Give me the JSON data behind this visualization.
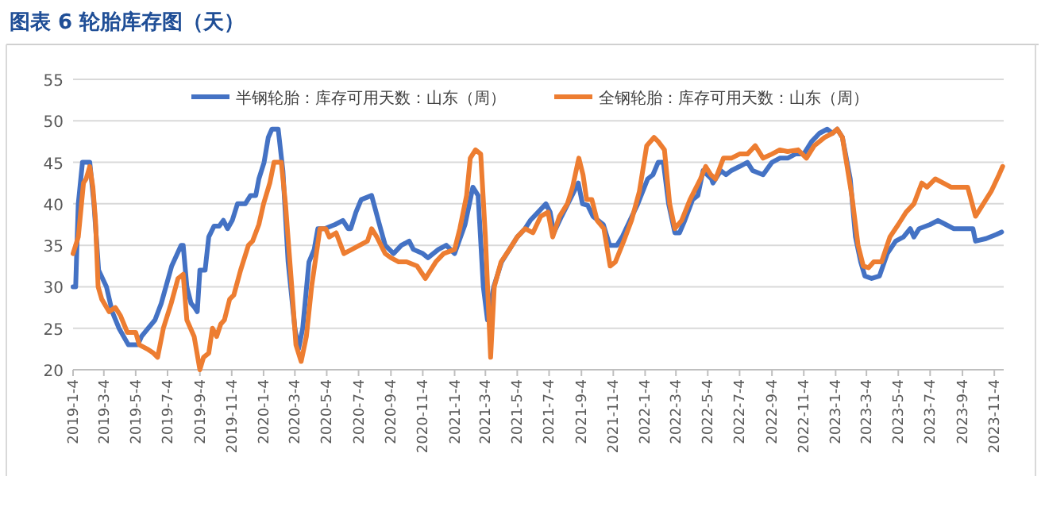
{
  "chart_data": {
    "type": "line",
    "title": "图表 6 轮胎库存图（天）",
    "xlim": [
      "2019-01-04",
      "2023-11-22"
    ],
    "xticks": [
      {
        "value": "2019-01-04",
        "label": "2019-1-4"
      },
      {
        "value": "2019-03-04",
        "label": "2019-3-4"
      },
      {
        "value": "2019-05-04",
        "label": "2019-5-4"
      },
      {
        "value": "2019-07-04",
        "label": "2019-7-4"
      },
      {
        "value": "2019-09-04",
        "label": "2019-9-4"
      },
      {
        "value": "2019-11-04",
        "label": "2019-11-4"
      },
      {
        "value": "2020-01-04",
        "label": "2020-1-4"
      },
      {
        "value": "2020-03-04",
        "label": "2020-3-4"
      },
      {
        "value": "2020-05-04",
        "label": "2020-5-4"
      },
      {
        "value": "2020-07-04",
        "label": "2020-7-4"
      },
      {
        "value": "2020-09-04",
        "label": "2020-9-4"
      },
      {
        "value": "2020-11-04",
        "label": "2020-11-4"
      },
      {
        "value": "2021-01-04",
        "label": "2021-1-4"
      },
      {
        "value": "2021-03-04",
        "label": "2021-3-4"
      },
      {
        "value": "2021-05-04",
        "label": "2021-5-4"
      },
      {
        "value": "2021-07-04",
        "label": "2021-7-4"
      },
      {
        "value": "2021-09-04",
        "label": "2021-9-4"
      },
      {
        "value": "2021-11-04",
        "label": "2021-11-4"
      },
      {
        "value": "2022-01-04",
        "label": "2022-1-4"
      },
      {
        "value": "2022-03-04",
        "label": "2022-3-4"
      },
      {
        "value": "2022-05-04",
        "label": "2022-5-4"
      },
      {
        "value": "2022-07-04",
        "label": "2022-7-4"
      },
      {
        "value": "2022-09-04",
        "label": "2022-9-4"
      },
      {
        "value": "2022-11-04",
        "label": "2022-11-4"
      },
      {
        "value": "2023-01-04",
        "label": "2023-1-4"
      },
      {
        "value": "2023-03-04",
        "label": "2023-3-4"
      },
      {
        "value": "2023-05-04",
        "label": "2023-5-4"
      },
      {
        "value": "2023-07-04",
        "label": "2023-7-4"
      },
      {
        "value": "2023-09-04",
        "label": "2023-9-4"
      },
      {
        "value": "2023-11-04",
        "label": "2023-11-4"
      }
    ],
    "ylim": [
      20,
      55
    ],
    "yticks": [
      20,
      25,
      30,
      35,
      40,
      45,
      50,
      55
    ],
    "grid": "y",
    "legend": "top",
    "series": [
      {
        "name": "半钢轮胎：库存可用天数：山东（周）",
        "color": "#4472c4",
        "x": [
          "2019-01-04",
          "2019-01-09",
          "2019-01-14",
          "2019-01-22",
          "2019-02-05",
          "2019-02-13",
          "2019-02-22",
          "2019-03-09",
          "2019-03-20",
          "2019-04-02",
          "2019-04-20",
          "2019-05-08",
          "2019-05-15",
          "2019-05-28",
          "2019-06-10",
          "2019-06-22",
          "2019-07-12",
          "2019-07-30",
          "2019-08-03",
          "2019-08-10",
          "2019-08-18",
          "2019-08-25",
          "2019-08-30",
          "2019-09-04",
          "2019-09-14",
          "2019-09-21",
          "2019-10-01",
          "2019-10-11",
          "2019-10-19",
          "2019-10-27",
          "2019-11-05",
          "2019-11-15",
          "2019-11-30",
          "2019-12-10",
          "2019-12-20",
          "2019-12-26",
          "2020-01-05",
          "2020-01-13",
          "2020-01-20",
          "2020-02-01",
          "2020-02-10",
          "2020-02-20",
          "2020-03-04",
          "2020-03-11",
          "2020-03-19",
          "2020-03-31",
          "2020-04-10",
          "2020-04-17",
          "2020-04-30",
          "2020-05-20",
          "2020-06-04",
          "2020-06-14",
          "2020-06-19",
          "2020-06-29",
          "2020-07-09",
          "2020-07-29",
          "2020-08-13",
          "2020-08-24",
          "2020-09-09",
          "2020-09-24",
          "2020-10-09",
          "2020-10-17",
          "2020-11-04",
          "2020-11-14",
          "2020-12-04",
          "2020-12-19",
          "2021-01-04",
          "2021-01-24",
          "2021-02-08",
          "2021-02-18",
          "2021-02-28",
          "2021-03-08",
          "2021-03-20",
          "2021-04-04",
          "2021-04-19",
          "2021-05-04",
          "2021-05-19",
          "2021-05-29",
          "2021-06-13",
          "2021-06-28",
          "2021-07-06",
          "2021-07-13",
          "2021-07-28",
          "2021-08-17",
          "2021-08-29",
          "2021-09-06",
          "2021-09-16",
          "2021-09-26",
          "2021-10-06",
          "2021-10-16",
          "2021-10-28",
          "2021-11-11",
          "2021-11-21",
          "2021-12-06",
          "2021-12-21",
          "2022-01-09",
          "2022-01-19",
          "2022-01-29",
          "2022-02-08",
          "2022-02-18",
          "2022-03-02",
          "2022-03-11",
          "2022-03-21",
          "2022-04-05",
          "2022-04-15",
          "2022-04-25",
          "2022-05-11",
          "2022-05-14",
          "2022-05-29",
          "2022-06-08",
          "2022-06-18",
          "2022-07-04",
          "2022-07-19",
          "2022-07-29",
          "2022-08-18",
          "2022-09-04",
          "2022-09-19",
          "2022-10-04",
          "2022-10-19",
          "2022-11-04",
          "2022-11-19",
          "2022-12-04",
          "2022-12-19",
          "2022-12-29",
          "2023-01-07",
          "2023-01-17",
          "2023-02-01",
          "2023-02-11",
          "2023-02-21",
          "2023-03-01",
          "2023-03-14",
          "2023-03-29",
          "2023-04-13",
          "2023-04-29",
          "2023-05-14",
          "2023-05-27",
          "2023-06-03",
          "2023-06-13",
          "2023-07-04",
          "2023-07-19",
          "2023-08-03",
          "2023-08-18",
          "2023-09-04",
          "2023-09-24",
          "2023-09-29",
          "2023-10-19",
          "2023-11-08",
          "2023-11-18"
        ],
        "values": [
          30,
          30,
          40,
          45,
          45,
          40,
          32,
          30,
          27,
          25,
          23,
          23,
          24,
          25,
          26,
          28,
          32.5,
          35,
          35,
          30,
          28,
          27.5,
          27,
          32,
          32,
          36,
          37.3,
          37.3,
          38,
          37,
          38,
          40,
          40,
          41,
          41,
          43,
          45,
          48,
          49,
          49,
          44,
          33,
          25,
          22.5,
          25,
          33,
          34.5,
          37,
          37,
          37.5,
          38,
          37,
          37,
          39,
          40.5,
          41,
          37.5,
          35,
          34,
          35,
          35.5,
          34.5,
          34,
          33.5,
          34.5,
          35,
          34,
          37.5,
          42,
          41,
          30,
          26,
          30,
          33,
          34.5,
          36,
          37,
          38,
          39,
          40,
          39,
          36.5,
          38.5,
          41,
          42.5,
          40,
          39.8,
          38.5,
          38,
          37.5,
          35,
          35,
          36,
          38,
          40,
          43,
          43.5,
          45,
          45,
          40,
          36.5,
          36.5,
          38,
          40.5,
          41,
          44,
          43,
          42.5,
          44,
          43.5,
          44,
          44.5,
          45,
          44,
          43.5,
          45,
          45.5,
          45.5,
          46,
          46,
          47.5,
          48.5,
          49,
          48.5,
          49,
          48,
          43,
          36,
          33,
          31.3,
          31,
          31.3,
          34,
          35.5,
          36,
          37,
          36,
          37,
          37.5,
          38,
          37.5,
          37,
          37,
          37,
          35.5,
          35.8,
          36.3,
          36.6
        ]
      },
      {
        "name": "全钢轮胎：库存可用天数：山东（周）",
        "color": "#ed7d31",
        "x": [
          "2019-01-04",
          "2019-01-14",
          "2019-01-24",
          "2019-01-29",
          "2019-02-05",
          "2019-02-11",
          "2019-02-16",
          "2019-02-21",
          "2019-02-28",
          "2019-03-14",
          "2019-03-26",
          "2019-04-05",
          "2019-04-18",
          "2019-05-04",
          "2019-05-11",
          "2019-05-26",
          "2019-06-07",
          "2019-06-15",
          "2019-06-26",
          "2019-07-11",
          "2019-07-24",
          "2019-08-03",
          "2019-08-10",
          "2019-08-24",
          "2019-09-04",
          "2019-09-11",
          "2019-09-21",
          "2019-09-28",
          "2019-10-06",
          "2019-10-14",
          "2019-10-21",
          "2019-10-31",
          "2019-11-08",
          "2019-11-21",
          "2019-12-06",
          "2019-12-14",
          "2019-12-26",
          "2020-01-04",
          "2020-01-16",
          "2020-01-24",
          "2020-02-07",
          "2020-02-15",
          "2020-02-27",
          "2020-03-06",
          "2020-03-16",
          "2020-03-26",
          "2020-04-05",
          "2020-04-21",
          "2020-05-02",
          "2020-05-09",
          "2020-05-22",
          "2020-06-06",
          "2020-06-21",
          "2020-07-06",
          "2020-07-21",
          "2020-07-29",
          "2020-08-08",
          "2020-08-24",
          "2020-09-04",
          "2020-09-19",
          "2020-10-04",
          "2020-10-24",
          "2020-11-09",
          "2020-11-29",
          "2020-12-14",
          "2021-01-04",
          "2021-01-14",
          "2021-01-27",
          "2021-02-03",
          "2021-02-13",
          "2021-02-23",
          "2021-03-04",
          "2021-03-14",
          "2021-03-21",
          "2021-04-03",
          "2021-04-19",
          "2021-05-04",
          "2021-05-19",
          "2021-06-03",
          "2021-06-18",
          "2021-07-02",
          "2021-07-11",
          "2021-07-24",
          "2021-08-08",
          "2021-08-18",
          "2021-08-30",
          "2021-09-07",
          "2021-09-14",
          "2021-09-24",
          "2021-10-04",
          "2021-10-17",
          "2021-10-29",
          "2021-11-08",
          "2021-11-24",
          "2021-12-09",
          "2021-12-24",
          "2022-01-07",
          "2022-01-21",
          "2022-01-29",
          "2022-02-10",
          "2022-02-20",
          "2022-03-02",
          "2022-03-15",
          "2022-03-31",
          "2022-04-20",
          "2022-04-30",
          "2022-05-10",
          "2022-05-19",
          "2022-06-03",
          "2022-06-18",
          "2022-07-04",
          "2022-07-19",
          "2022-08-03",
          "2022-08-18",
          "2022-09-04",
          "2022-09-19",
          "2022-10-04",
          "2022-10-24",
          "2022-11-09",
          "2022-11-24",
          "2022-12-14",
          "2022-12-29",
          "2023-01-07",
          "2023-01-17",
          "2023-02-04",
          "2023-02-16",
          "2023-02-26",
          "2023-03-08",
          "2023-03-18",
          "2023-04-02",
          "2023-04-18",
          "2023-05-04",
          "2023-05-19",
          "2023-06-03",
          "2023-06-18",
          "2023-06-28",
          "2023-07-14",
          "2023-07-29",
          "2023-08-13",
          "2023-08-29",
          "2023-09-14",
          "2023-09-29",
          "2023-10-14",
          "2023-10-29",
          "2023-11-13",
          "2023-11-20"
        ],
        "values": [
          34,
          36,
          42.5,
          43,
          44.5,
          42,
          38,
          30,
          28.5,
          27,
          27.5,
          26.5,
          24.5,
          24.5,
          23,
          22.5,
          22,
          21.5,
          25,
          28,
          31,
          31.5,
          26,
          24,
          20,
          21.5,
          22,
          25,
          24,
          25.5,
          26,
          28.5,
          29,
          32,
          35,
          35.5,
          37.5,
          40,
          42.5,
          45,
          45,
          40,
          30,
          23,
          21,
          24,
          30,
          37,
          37,
          36,
          36.5,
          34,
          34.5,
          35,
          35.5,
          37,
          36,
          34,
          33.5,
          33,
          33,
          32.5,
          31,
          33,
          34,
          34.5,
          37,
          41,
          45.5,
          46.5,
          46,
          36,
          21.5,
          30,
          33,
          34.5,
          36,
          37,
          36.5,
          38.5,
          39,
          36,
          38.5,
          40,
          42,
          45.5,
          43.5,
          40.5,
          40.5,
          38,
          37,
          32.5,
          33,
          35.5,
          38,
          41.5,
          47,
          48,
          47.5,
          46.5,
          40,
          37,
          38,
          40.5,
          43,
          44.5,
          43.5,
          43,
          45.5,
          45.5,
          46,
          46,
          47,
          45.5,
          46,
          46.5,
          46.3,
          46.5,
          45.5,
          47,
          48,
          48.5,
          49,
          48,
          41,
          35,
          32.5,
          32.3,
          33,
          33,
          36,
          37.5,
          39,
          40,
          42.5,
          42,
          43,
          42.5,
          42,
          42,
          42,
          38.5,
          40,
          41.5,
          43.5,
          44.5
        ]
      }
    ]
  }
}
